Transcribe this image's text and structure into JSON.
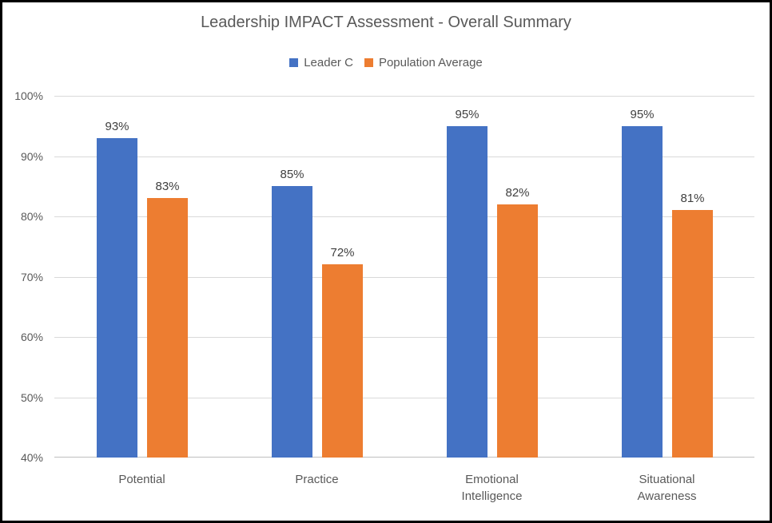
{
  "window": {
    "background": "#ffffff",
    "border_color": "#000000"
  },
  "chart": {
    "title": "Leadership IMPACT Assessment - Overall Summary",
    "legend_items": [
      {
        "label": "Leader C",
        "color": "#4472C4"
      },
      {
        "label": "Population Average",
        "color": "#ED7D31"
      }
    ]
  },
  "chart_data": {
    "type": "bar",
    "title": "Leadership IMPACT Assessment - Overall Summary",
    "categories": [
      "Potential",
      "Practice",
      "Emotional Intelligence",
      "Situational Awareness"
    ],
    "category_label_lines": [
      [
        "Potential"
      ],
      [
        "Practice"
      ],
      [
        "Emotional",
        "Intelligence"
      ],
      [
        "Situational",
        "Awareness"
      ]
    ],
    "series": [
      {
        "name": "Leader C",
        "color": "#4472C4",
        "values": [
          93,
          85,
          95,
          95
        ],
        "data_labels": [
          "93%",
          "85%",
          "95%",
          "95%"
        ]
      },
      {
        "name": "Population Average",
        "color": "#ED7D31",
        "values": [
          83,
          72,
          82,
          81
        ],
        "data_labels": [
          "83%",
          "72%",
          "82%",
          "81%"
        ]
      }
    ],
    "xlabel": "",
    "ylabel": "",
    "ylim": [
      40,
      100
    ],
    "ytick_step": 10,
    "ytick_labels": [
      "100%",
      "90%",
      "80%",
      "70%",
      "60%",
      "50%",
      "40%"
    ],
    "grid": true,
    "legend_position": "top",
    "styles": {
      "gridline_color": "#D9D9D9",
      "axis_line_color": "#BFBFBF",
      "title_color": "#595959",
      "tick_label_color": "#595959",
      "data_label_color": "#404040"
    }
  }
}
